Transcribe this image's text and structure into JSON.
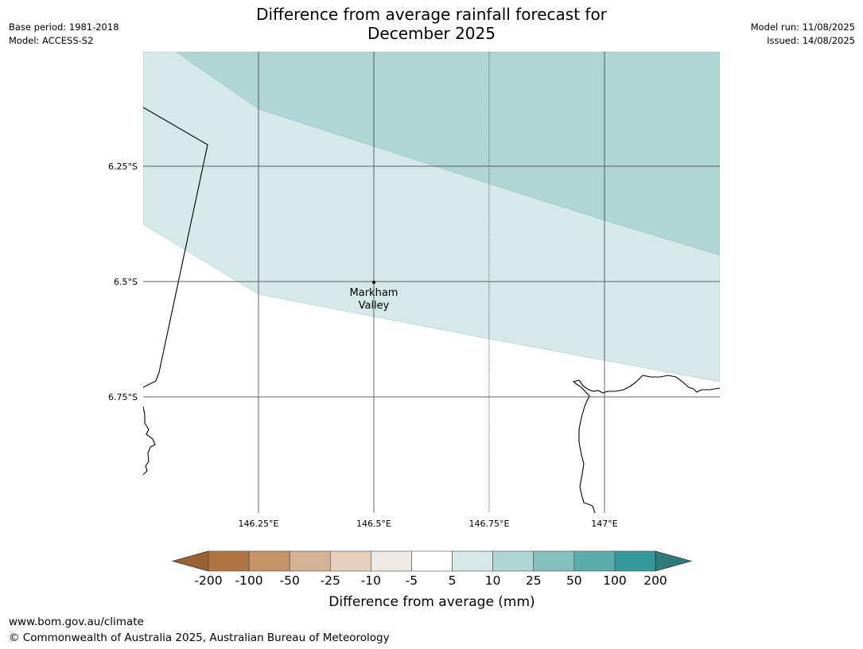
{
  "header": {
    "title_line1": "Difference from average rainfall forecast for",
    "title_line2": "December 2025",
    "base_period": "Base period: 1981-2018",
    "model": "Model: ACCESS-S2",
    "model_run": "Model run: 11/08/2025",
    "issued": "Issued: 14/08/2025"
  },
  "map": {
    "lat_labels": [
      "6.25°S",
      "6.5°S",
      "6.75°S"
    ],
    "lon_labels": [
      "146.25°E",
      "146.5°E",
      "146.75°E",
      "147°E"
    ],
    "place": {
      "name_line1": "Markham",
      "name_line2": "Valley"
    },
    "zones": [
      {
        "category": "5 to 10",
        "color": "#d5e9e8"
      },
      {
        "category": "10 to 25",
        "color": "#afd5d5"
      }
    ]
  },
  "colorbar": {
    "label": "Difference from average (mm)",
    "ticks": [
      "-200",
      "-100",
      "-50",
      "-25",
      "-10",
      "-5",
      "5",
      "10",
      "25",
      "50",
      "100",
      "200"
    ],
    "colors": [
      "#9b6231",
      "#ae7541",
      "#c49366",
      "#d4b394",
      "#e6d0bd",
      "#eee9e4",
      "#ffffff",
      "#d5e9e8",
      "#afd5d5",
      "#84bfbf",
      "#5aacad",
      "#33999a",
      "#2d7c7c"
    ]
  },
  "footer": {
    "url": "www.bom.gov.au/climate",
    "copyright": "© Commonwealth of Australia 2025, Australian Bureau of Meteorology"
  }
}
